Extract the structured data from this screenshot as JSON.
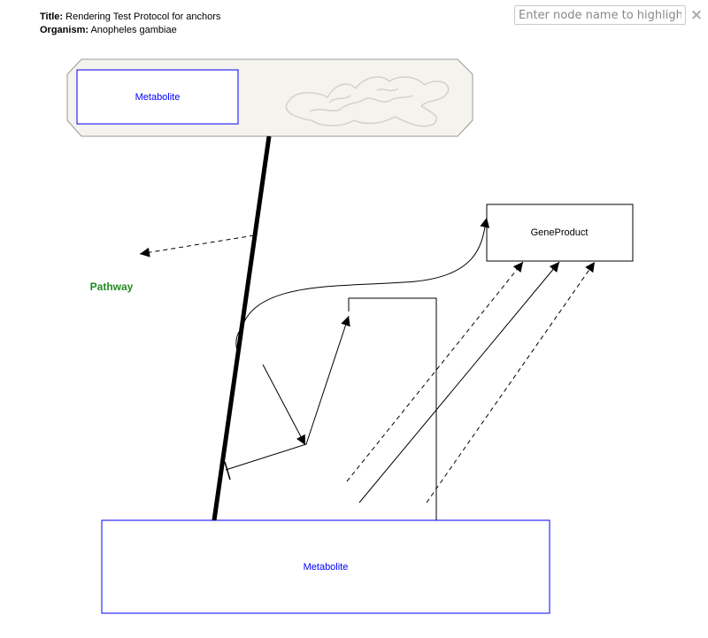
{
  "header": {
    "title_label": "Title:",
    "title_value": "Rendering Test Protocol for anchors",
    "organism_label": "Organism:",
    "organism_value": "Anopheles gambiae"
  },
  "search": {
    "placeholder": "Enter node name to highlight",
    "value": "",
    "clear_icon": "×"
  },
  "diagram": {
    "nodes": {
      "metabolite_top": {
        "label": "Metabolite",
        "color": "#0000ff"
      },
      "gene_product": {
        "label": "GeneProduct",
        "color": "#000000"
      },
      "pathway": {
        "label": "Pathway",
        "color": "#228b22"
      },
      "metabolite_bottom": {
        "label": "Metabolite",
        "color": "#0000ff"
      }
    },
    "cellular_component": {
      "shape": "octagon",
      "fill": "#f4f3ee",
      "icon": "mitochondria-icon"
    }
  }
}
